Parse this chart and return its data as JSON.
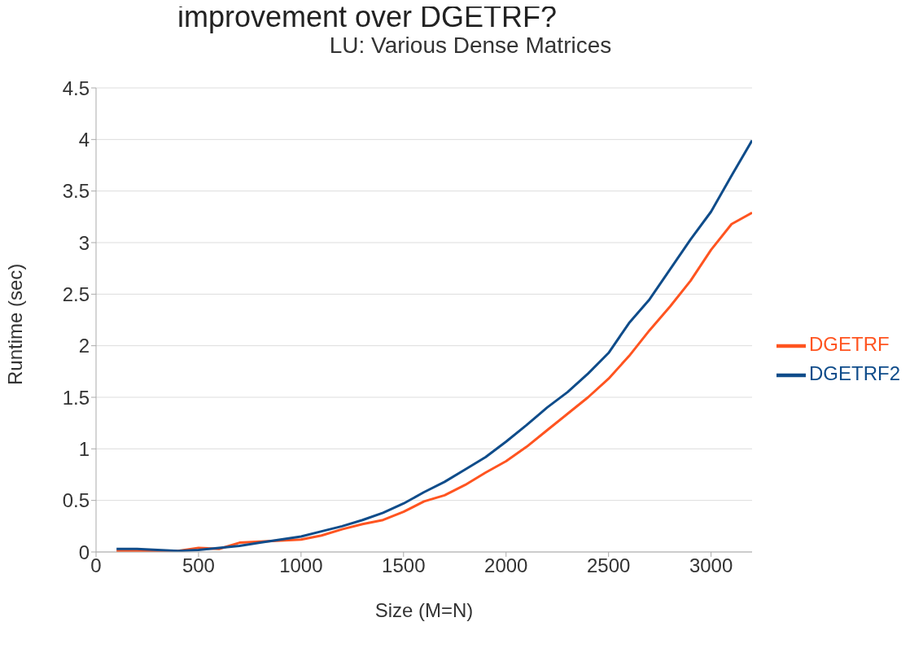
{
  "chart_data": {
    "type": "line",
    "title": "LU: Various Dense Matrices",
    "xlabel": "Size (M=N)",
    "ylabel": "Runtime (sec)",
    "annotations": [
      "improvement over DGETRF?"
    ],
    "x": [
      100,
      200,
      300,
      400,
      500,
      600,
      700,
      800,
      900,
      1000,
      1100,
      1200,
      1300,
      1400,
      1500,
      1600,
      1700,
      1800,
      1900,
      2000,
      2100,
      2200,
      2300,
      2400,
      2500,
      2600,
      2700,
      2800,
      2900,
      3000,
      3100,
      3200
    ],
    "series": [
      {
        "name": "DGETRF",
        "color": "#ff5420",
        "values": [
          0.01,
          0.01,
          0.01,
          0.01,
          0.04,
          0.03,
          0.09,
          0.1,
          0.11,
          0.12,
          0.16,
          0.22,
          0.27,
          0.31,
          0.39,
          0.49,
          0.55,
          0.65,
          0.77,
          0.88,
          1.02,
          1.18,
          1.34,
          1.5,
          1.68,
          1.9,
          2.15,
          2.38,
          2.63,
          2.93,
          3.18,
          3.29
        ]
      },
      {
        "name": "DGETRF2",
        "color": "#0f4c8a",
        "values": [
          0.03,
          0.03,
          0.02,
          0.01,
          0.02,
          0.04,
          0.06,
          0.09,
          0.12,
          0.15,
          0.2,
          0.25,
          0.31,
          0.38,
          0.47,
          0.58,
          0.68,
          0.8,
          0.92,
          1.07,
          1.23,
          1.4,
          1.55,
          1.73,
          1.93,
          2.22,
          2.45,
          2.74,
          3.03,
          3.3,
          3.65,
          3.99
        ]
      }
    ],
    "xlim": [
      0,
      3200
    ],
    "xticks": [
      0,
      500,
      1000,
      1500,
      2000,
      2500,
      3000
    ],
    "ylim": [
      0,
      4.5
    ],
    "yticks": [
      0,
      0.5,
      1,
      1.5,
      2,
      2.5,
      3,
      3.5,
      4,
      4.5
    ],
    "grid": "y",
    "legend": "right",
    "marker": "none",
    "line_style": "solid"
  }
}
